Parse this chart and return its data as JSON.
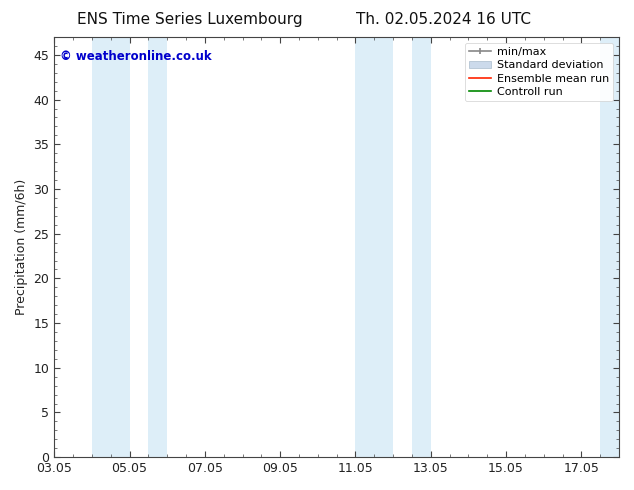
{
  "title_left": "ENS Time Series Luxembourg",
  "title_right": "Th. 02.05.2024 16 UTC",
  "ylabel": "Precipitation (mm/6h)",
  "xlim_days": [
    0,
    15
  ],
  "ylim": [
    0,
    47
  ],
  "yticks": [
    0,
    5,
    10,
    15,
    20,
    25,
    30,
    35,
    40,
    45
  ],
  "xtick_labels": [
    "03.05",
    "05.05",
    "07.05",
    "09.05",
    "11.05",
    "13.05",
    "15.05",
    "17.05"
  ],
  "xtick_positions": [
    0,
    2,
    4,
    6,
    8,
    10,
    12,
    14
  ],
  "background_color": "#ffffff",
  "plot_bg_color": "#ffffff",
  "band_color": "#ddeef8",
  "shaded_bands": [
    {
      "x_start": 1.0,
      "x_end": 2.0
    },
    {
      "x_start": 2.5,
      "x_end": 3.0
    },
    {
      "x_start": 8.0,
      "x_end": 9.0
    },
    {
      "x_start": 9.5,
      "x_end": 10.0
    },
    {
      "x_start": 14.5,
      "x_end": 15.0
    }
  ],
  "watermark": "© weatheronline.co.uk",
  "watermark_color": "#0000cc",
  "legend_labels": [
    "min/max",
    "Standard deviation",
    "Ensemble mean run",
    "Controll run"
  ],
  "legend_colors_line": [
    "#999999",
    "#bbccdd",
    "#ff0000",
    "#008000"
  ],
  "title_fontsize": 11,
  "tick_fontsize": 9,
  "legend_fontsize": 8,
  "ylabel_fontsize": 9
}
